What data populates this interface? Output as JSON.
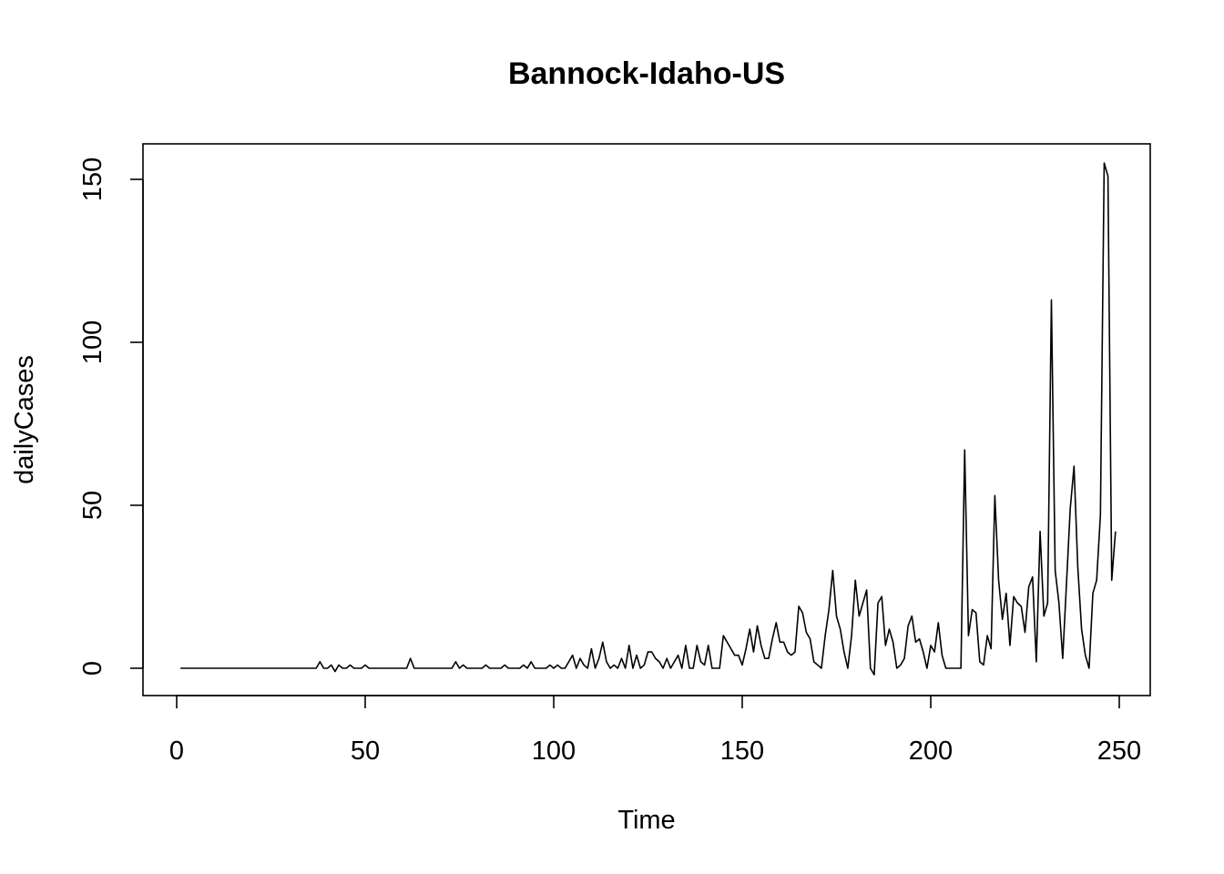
{
  "chart_data": {
    "type": "line",
    "title": "Bannock-Idaho-US",
    "xlabel": "Time",
    "ylabel": "dailyCases",
    "xlim": [
      1,
      249
    ],
    "ylim": [
      -3,
      155
    ],
    "x_ticks": [
      0,
      50,
      100,
      150,
      200,
      250
    ],
    "y_ticks": [
      0,
      50,
      100,
      150
    ],
    "grid": false,
    "legend": "none",
    "series": [
      {
        "x_start": 1,
        "values": [
          0,
          0,
          0,
          0,
          0,
          0,
          0,
          0,
          0,
          0,
          0,
          0,
          0,
          0,
          0,
          0,
          0,
          0,
          0,
          0,
          0,
          0,
          0,
          0,
          0,
          0,
          0,
          0,
          0,
          0,
          0,
          0,
          0,
          0,
          0,
          0,
          0,
          2,
          0,
          0,
          1,
          -1,
          1,
          0,
          0,
          1,
          0,
          0,
          0,
          1,
          0,
          0,
          0,
          0,
          0,
          0,
          0,
          0,
          0,
          0,
          0,
          3,
          0,
          0,
          0,
          0,
          0,
          0,
          0,
          0,
          0,
          0,
          0,
          2,
          0,
          1,
          0,
          0,
          0,
          0,
          0,
          1,
          0,
          0,
          0,
          0,
          1,
          0,
          0,
          0,
          0,
          1,
          0,
          2,
          0,
          0,
          0,
          0,
          1,
          0,
          1,
          0,
          0,
          2,
          4,
          0,
          3,
          1,
          0,
          6,
          0,
          3,
          8,
          2,
          0,
          1,
          0,
          3,
          0,
          7,
          0,
          4,
          0,
          1,
          5,
          5,
          3,
          2,
          0,
          3,
          0,
          2,
          4,
          0,
          7,
          0,
          0,
          7,
          2,
          1,
          7,
          0,
          0,
          0,
          10,
          8,
          6,
          4,
          4,
          1,
          6,
          12,
          5,
          13,
          7,
          3,
          3,
          9,
          14,
          8,
          8,
          5,
          4,
          5,
          19,
          17,
          11,
          9,
          2,
          1,
          0,
          10,
          18,
          30,
          16,
          12,
          5,
          0,
          10,
          27,
          16,
          20,
          24,
          0,
          -2,
          20,
          22,
          7,
          12,
          8,
          0,
          1,
          3,
          13,
          16,
          8,
          9,
          5,
          0,
          7,
          5,
          14,
          4,
          0,
          0,
          0,
          0,
          0,
          67,
          10,
          18,
          17,
          2,
          1,
          10,
          6,
          53,
          27,
          15,
          23,
          7,
          22,
          20,
          19,
          11,
          25,
          28,
          2,
          42,
          16,
          20,
          113,
          30,
          20,
          3,
          26,
          49,
          62,
          31,
          12,
          4,
          0,
          23,
          27,
          47,
          155,
          151,
          27,
          42
        ]
      }
    ]
  }
}
